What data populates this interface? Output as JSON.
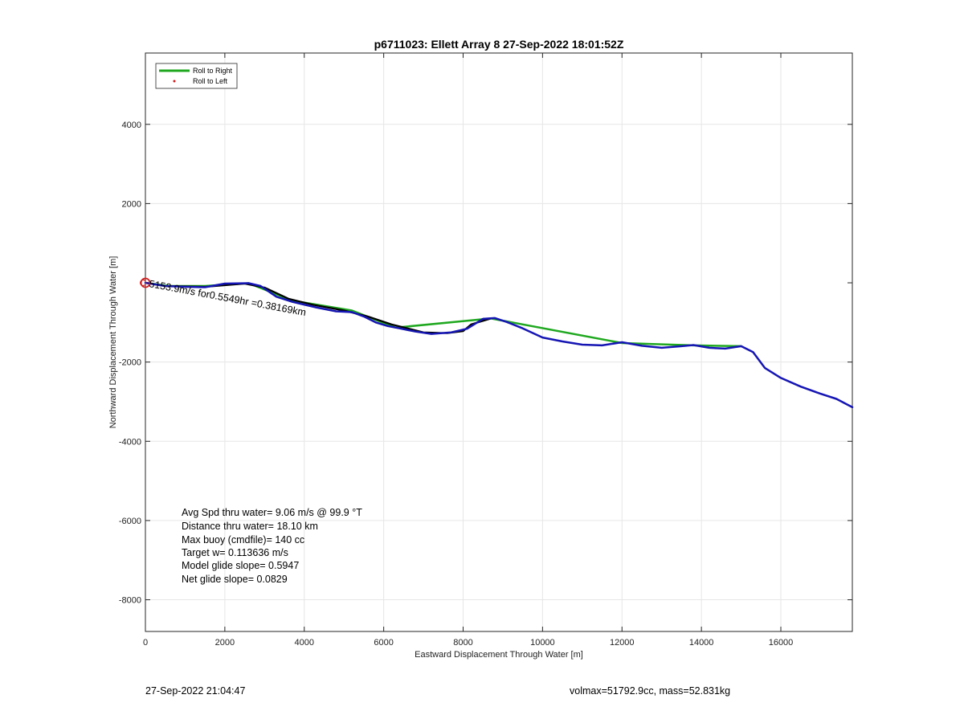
{
  "chart_data": {
    "type": "line",
    "title": "p6711023: Ellett Array 8 27-Sep-2022 18:01:52Z",
    "xlabel": "Eastward Displacement Through Water [m]",
    "ylabel": "Northward Displacement Through Water [m]",
    "xlim": [
      0,
      17800
    ],
    "ylim": [
      -8800,
      5800
    ],
    "xticks": [
      0,
      2000,
      4000,
      6000,
      8000,
      10000,
      12000,
      14000,
      16000
    ],
    "yticks": [
      4000,
      2000,
      -2000,
      -4000,
      -6000,
      -8000
    ],
    "grid": true,
    "legend": {
      "placement": "top-left",
      "entries": [
        {
          "label": "Roll to Right",
          "color": "#1fa81f",
          "style": "line"
        },
        {
          "label": "Roll to Left",
          "color": "#d01c1c",
          "style": "dot"
        }
      ]
    },
    "series": [
      {
        "name": "Roll to Right",
        "color": "#1fa81f",
        "x": [
          0,
          600,
          1500,
          2600,
          3700,
          5200,
          6300,
          8700,
          12000,
          13800,
          15000
        ],
        "y": [
          0,
          -80,
          -80,
          -10,
          -450,
          -700,
          -1130,
          -900,
          -1520,
          -1580,
          -1600
        ]
      },
      {
        "name": "",
        "color": "#000000",
        "x": [
          0,
          500,
          1500,
          2500,
          3000,
          3600,
          4200,
          5000,
          5600,
          6200,
          7000,
          7600,
          8000,
          8200,
          8700
        ],
        "y": [
          0,
          -80,
          -100,
          -20,
          -120,
          -400,
          -550,
          -700,
          -850,
          -1050,
          -1250,
          -1270,
          -1220,
          -1050,
          -900
        ]
      },
      {
        "name": "",
        "color": "#1515b4",
        "x": [
          0,
          500,
          1000,
          1500,
          2000,
          2600,
          2900,
          3300,
          3700,
          4300,
          4800,
          5200,
          5500,
          5800,
          6100,
          6400,
          6800,
          7200,
          7700,
          8100,
          8500,
          8800,
          9100,
          9500,
          10000,
          10500,
          11000,
          11500,
          12000,
          12500,
          13000,
          13500,
          13800,
          14200,
          14600,
          15000,
          15300,
          15600,
          16000,
          16500,
          17000,
          17400,
          17800
        ],
        "y": [
          0,
          -80,
          -100,
          -110,
          -20,
          -10,
          -80,
          -350,
          -480,
          -620,
          -720,
          -740,
          -850,
          -1000,
          -1090,
          -1150,
          -1230,
          -1290,
          -1250,
          -1160,
          -910,
          -890,
          -990,
          -1150,
          -1380,
          -1480,
          -1560,
          -1580,
          -1500,
          -1590,
          -1640,
          -1600,
          -1570,
          -1640,
          -1660,
          -1600,
          -1750,
          -2150,
          -2400,
          -2620,
          -2800,
          -2930,
          -3140
        ]
      }
    ],
    "markers": [
      {
        "name": "Roll to Left",
        "color": "#d01c1c",
        "x": 0,
        "y": 0
      }
    ]
  },
  "annotation": {
    "text": "5153.9m/s for0.5549hr =0.38169km"
  },
  "stats": [
    "Avg Spd thru water=  9.06 m/s @  99.9 °T",
    "Distance thru water= 18.10 km",
    "Max buoy (cmdfile)= 140 cc",
    "Target w= 0.113636 m/s",
    "Model glide slope= 0.5947",
    "Net glide slope= 0.0829"
  ],
  "footer": {
    "timestamp": "27-Sep-2022 21:04:47",
    "vol_mass": "volmax=51792.9cc, mass=52.831kg"
  }
}
